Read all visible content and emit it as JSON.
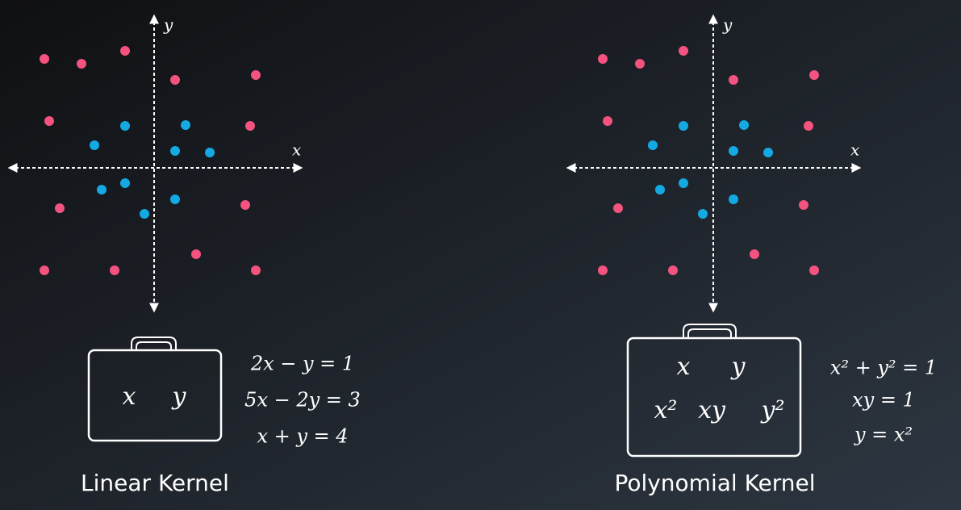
{
  "panels": [
    {
      "axis_labels": {
        "x": "x",
        "y": "y"
      },
      "kernel_features": [
        [
          "x",
          "y"
        ]
      ],
      "equations": [
        "2x − y = 1",
        "5x − 2y = 3",
        "x + y = 4"
      ],
      "label": "Linear Kernel"
    },
    {
      "axis_labels": {
        "x": "x",
        "y": "y"
      },
      "kernel_features": [
        [
          "x",
          "y"
        ],
        [
          "x²",
          "xy",
          "y²"
        ]
      ],
      "equations": [
        "x² + y² = 1",
        "xy = 1",
        "y = x²"
      ],
      "label": "Polynomial Kernel"
    }
  ]
}
